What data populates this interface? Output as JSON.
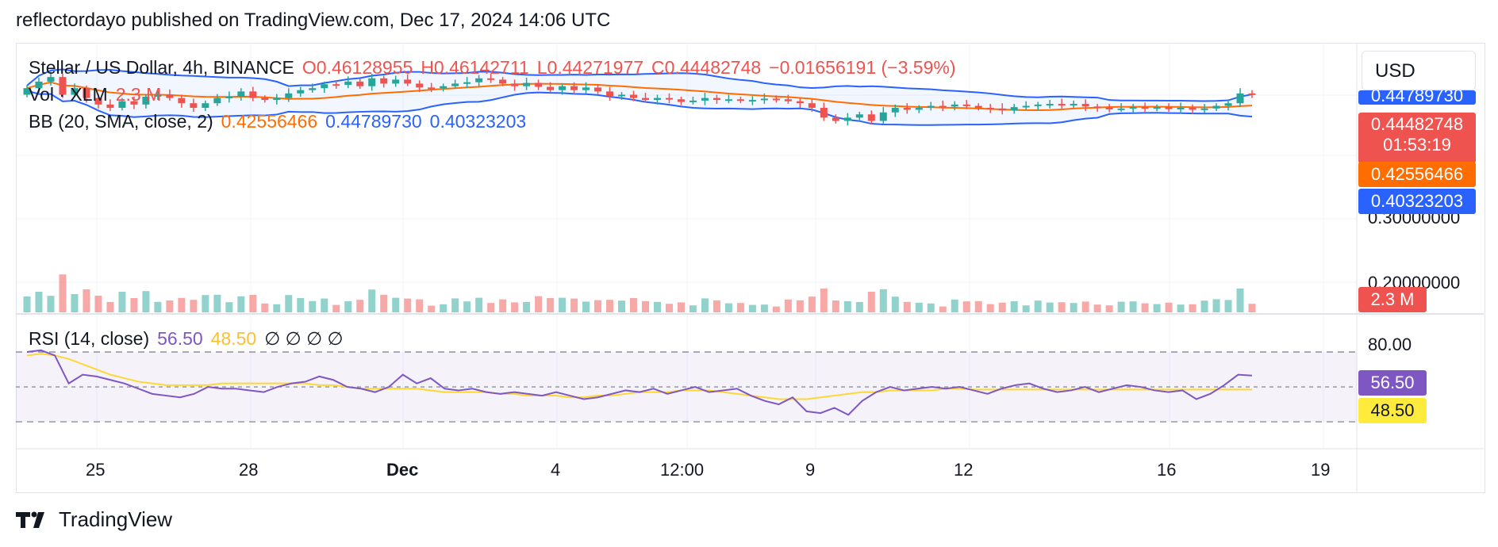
{
  "header": {
    "text": "reflectordayo published on TradingView.com, Dec 17, 2024 14:06 UTC"
  },
  "legend": {
    "symbol": "Stellar / US Dollar, 4h, BINANCE",
    "o": "O0.46128955",
    "h": "H0.46142711",
    "l": "L0.44271977",
    "c": "C0.44482748",
    "chg": "−0.01656191 (−3.59%)",
    "vol": "Vol · XLM",
    "vol_val": "2.3 M",
    "bb": "BB (20, SMA, close, 2)",
    "bb_mid": "0.42556466",
    "bb_up": "0.44789730",
    "bb_low": "0.40323203"
  },
  "rsi_legend": {
    "label": "RSI (14, close)",
    "rsi": "56.50",
    "ma": "48.50",
    "na": "∅ ∅ ∅ ∅"
  },
  "currency": "USD",
  "price_axis": [
    "0.30000000",
    "0.20000000"
  ],
  "rsi_axis": [
    "80.00"
  ],
  "price_tags": {
    "upper": "0.44789730",
    "last": "0.44482748",
    "countdown": "01:53:19",
    "mid": "0.42556466",
    "lower": "0.40323203",
    "vol": "2.3 M",
    "rsi": "56.50",
    "rsi_ma": "48.50"
  },
  "time_axis": [
    "25",
    "28",
    "Dec",
    "4",
    "12:00",
    "9",
    "12",
    "16",
    "19"
  ],
  "footer": {
    "brand": "TradingView"
  },
  "colors": {
    "up": "#26a69a",
    "down": "#ef5350",
    "bb_mid": "#ff6d00",
    "bb_band": "#2962ff",
    "rsi": "#7e57c2",
    "rsi_ma": "#fdd835"
  },
  "chart_data": {
    "type": "candlestick",
    "title": "Stellar / US Dollar, 4h, BINANCE",
    "ylim": [
      0.2,
      0.5
    ],
    "close": [
      0.455,
      0.465,
      0.472,
      0.445,
      0.455,
      0.44,
      0.43,
      0.425,
      0.435,
      0.43,
      0.442,
      0.445,
      0.44,
      0.432,
      0.425,
      0.432,
      0.44,
      0.442,
      0.45,
      0.44,
      0.437,
      0.44,
      0.447,
      0.452,
      0.455,
      0.461,
      0.46,
      0.465,
      0.458,
      0.47,
      0.462,
      0.468,
      0.462,
      0.456,
      0.455,
      0.458,
      0.462,
      0.464,
      0.47,
      0.468,
      0.462,
      0.458,
      0.463,
      0.457,
      0.452,
      0.458,
      0.452,
      0.456,
      0.45,
      0.443,
      0.445,
      0.44,
      0.437,
      0.44,
      0.438,
      0.434,
      0.436,
      0.44,
      0.437,
      0.438,
      0.436,
      0.437,
      0.439,
      0.438,
      0.435,
      0.432,
      0.425,
      0.41,
      0.405,
      0.41,
      0.415,
      0.405,
      0.418,
      0.425,
      0.422,
      0.425,
      0.428,
      0.427,
      0.43,
      0.428,
      0.425,
      0.424,
      0.421,
      0.426,
      0.428,
      0.43,
      0.431,
      0.429,
      0.431,
      0.427,
      0.425,
      0.423,
      0.424,
      0.426,
      0.425,
      0.426,
      0.423,
      0.425,
      0.422,
      0.424,
      0.428,
      0.432,
      0.447,
      0.445
    ],
    "rsi": [
      70,
      71,
      68,
      52,
      57,
      56,
      54,
      52,
      49,
      46,
      45,
      44,
      46,
      50,
      49,
      49,
      48,
      47,
      50,
      52,
      53,
      56,
      54,
      50,
      49,
      47,
      50,
      57,
      52,
      55,
      49,
      48,
      49,
      47,
      46,
      47,
      46,
      45,
      47,
      45,
      43,
      44,
      46,
      48,
      47,
      49,
      46,
      48,
      50,
      47,
      48,
      49,
      45,
      42,
      40,
      44,
      36,
      35,
      38,
      34,
      42,
      47,
      50,
      48,
      49,
      50,
      49,
      50,
      48,
      46,
      49,
      51,
      52,
      49,
      47,
      48,
      50,
      47,
      49,
      51,
      50,
      48,
      47,
      48,
      43,
      46,
      51,
      57,
      56.5
    ],
    "rsi_ma": [
      68,
      69,
      68,
      66,
      63,
      60,
      57,
      55,
      53,
      52,
      51,
      51,
      51,
      51,
      52,
      52,
      52,
      52,
      52,
      52,
      52,
      51,
      51,
      50,
      49,
      49,
      49,
      49,
      49,
      48,
      47,
      47,
      47,
      47,
      46,
      46,
      45,
      45,
      45,
      44,
      44,
      45,
      45,
      46,
      47,
      47,
      47,
      48,
      48,
      48,
      47,
      46,
      45,
      44,
      43,
      43,
      43,
      44,
      45,
      46,
      47,
      47,
      48,
      48,
      48,
      48,
      49,
      49,
      48.5,
      48.5,
      48.5,
      48.5,
      48.5,
      48.5,
      48.5,
      48.5,
      48.5,
      48.5,
      48.5,
      48.5,
      48.5,
      48.5,
      48.5,
      48.5,
      48.5,
      48.5,
      48.5,
      48.5,
      48.5
    ]
  }
}
